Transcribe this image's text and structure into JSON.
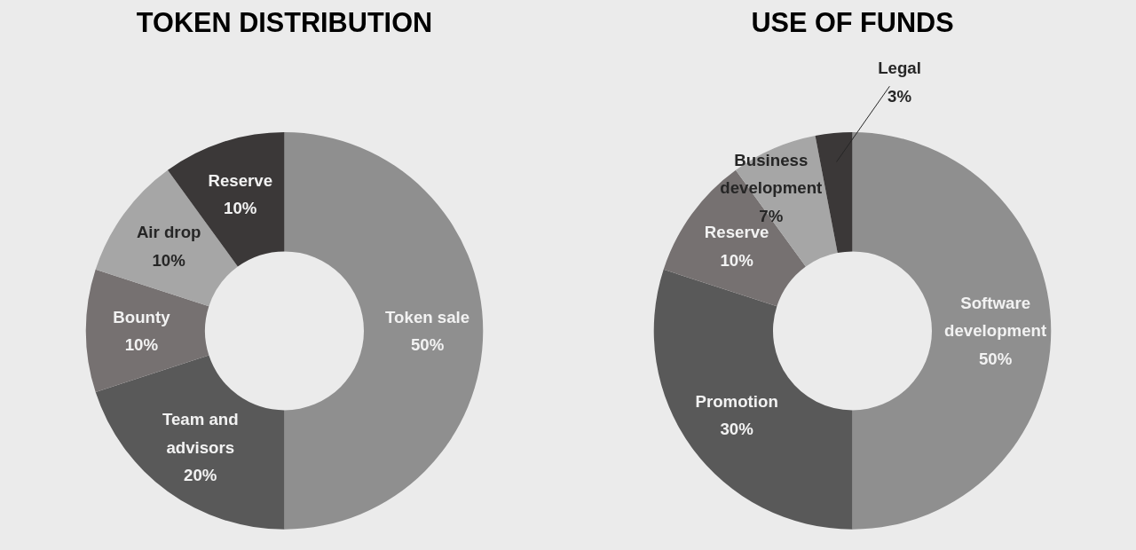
{
  "chart_data": [
    {
      "type": "donut",
      "title": "TOKEN DISTRIBUTION",
      "categories": [
        "Token sale",
        "Team and advisors",
        "Bounty",
        "Air drop",
        "Reserve"
      ],
      "values": [
        50,
        20,
        10,
        10,
        10
      ],
      "colors": [
        "#8f8f8f",
        "#595959",
        "#767171",
        "#a6a6a6",
        "#3b3838"
      ],
      "value_labels": [
        "50%",
        "20%",
        "10%",
        "10%",
        "10%"
      ]
    },
    {
      "type": "donut",
      "title": "USE OF FUNDS",
      "categories": [
        "Software development",
        "Promotion",
        "Reserve",
        "Business development",
        "Legal"
      ],
      "values": [
        50,
        30,
        10,
        7,
        3
      ],
      "colors": [
        "#8f8f8f",
        "#595959",
        "#767171",
        "#a6a6a6",
        "#3b3838"
      ],
      "value_labels": [
        "50%",
        "30%",
        "10%",
        "7%",
        "3%"
      ]
    }
  ]
}
